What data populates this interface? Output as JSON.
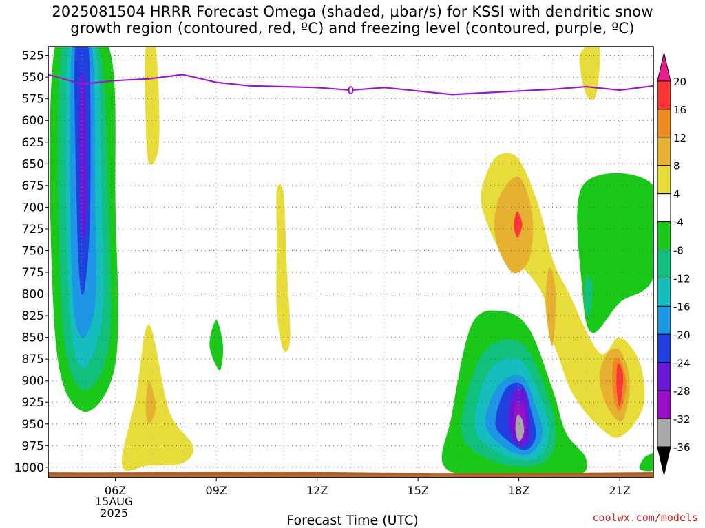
{
  "title": {
    "line1": "2025081504 HRRR Forecast Omega (shaded, μbar/s) for KSSI with dendritic snow",
    "line2": "growth region (contoured, red, ºC) and freezing level (contoured, purple, ºC)"
  },
  "credit": "coolwx.com/models",
  "colors": {
    "freezing_level": "#9a18c8",
    "ground": "#b5652e",
    "grid": "#555555"
  },
  "chart_data": {
    "type": "heatmap",
    "xlabel": "Forecast Time (UTC)",
    "ylabel": "",
    "x_ticks": [
      {
        "hour": 6,
        "label": "06Z",
        "sub1": "15AUG",
        "sub2": "2025"
      },
      {
        "hour": 9,
        "label": "09Z"
      },
      {
        "hour": 12,
        "label": "12Z"
      },
      {
        "hour": 15,
        "label": "15Z"
      },
      {
        "hour": 18,
        "label": "18Z"
      },
      {
        "hour": 21,
        "label": "21Z"
      }
    ],
    "xlim_hours": [
      4.0,
      22.0
    ],
    "y_ticks": [
      525,
      550,
      575,
      600,
      625,
      650,
      675,
      700,
      725,
      750,
      775,
      800,
      825,
      850,
      875,
      900,
      925,
      950,
      975,
      1000
    ],
    "ylim_hpa": [
      515,
      1012
    ],
    "colorbar": {
      "labels": [
        "20",
        "16",
        "12",
        "8",
        "4",
        "-4",
        "-8",
        "-12",
        "-16",
        "-20",
        "-24",
        "-28",
        "-32",
        "-36"
      ],
      "colors": [
        "#ec1a8c",
        "#ff3535",
        "#f08a20",
        "#e6b030",
        "#e8dc3a",
        "#ffffff",
        "#19c819",
        "#12c07e",
        "#14bebe",
        "#1e96e6",
        "#2040e0",
        "#6a18d8",
        "#9a10c8",
        "#a8a8a8",
        "#000000"
      ]
    },
    "freezing_level": {
      "hours": [
        4.0,
        5.0,
        6.0,
        7.0,
        8.0,
        9.0,
        10.0,
        11.0,
        12.0,
        13.0,
        14.0,
        15.0,
        16.0,
        17.0,
        18.0,
        19.0,
        20.0,
        21.0,
        22.0
      ],
      "hpa": [
        547,
        558,
        554,
        552,
        547,
        556,
        560,
        561,
        562,
        565,
        562,
        566,
        570,
        568,
        566,
        564,
        561,
        565,
        560
      ]
    },
    "shaded_regions": [
      {
        "value": -8,
        "color": "#19c819",
        "pts": [
          [
            4.2,
            515
          ],
          [
            5.8,
            515
          ],
          [
            6.0,
            700
          ],
          [
            6.0,
            880
          ],
          [
            5.0,
            935
          ],
          [
            4.2,
            845
          ]
        ]
      },
      {
        "value": -12,
        "color": "#12c07e",
        "pts": [
          [
            4.4,
            515
          ],
          [
            5.5,
            515
          ],
          [
            5.8,
            700
          ],
          [
            5.8,
            860
          ],
          [
            5.0,
            910
          ],
          [
            4.4,
            820
          ]
        ]
      },
      {
        "value": -16,
        "color": "#14bebe",
        "pts": [
          [
            4.6,
            515
          ],
          [
            5.4,
            515
          ],
          [
            5.6,
            700
          ],
          [
            5.6,
            830
          ],
          [
            5.0,
            885
          ],
          [
            4.6,
            800
          ]
        ]
      },
      {
        "value": -20,
        "color": "#1e96e6",
        "pts": [
          [
            4.7,
            515
          ],
          [
            5.3,
            515
          ],
          [
            5.4,
            700
          ],
          [
            5.4,
            810
          ],
          [
            5.0,
            850
          ],
          [
            4.7,
            780
          ]
        ]
      },
      {
        "value": -24,
        "color": "#2040e0",
        "pts": [
          [
            4.8,
            515
          ],
          [
            5.2,
            515
          ],
          [
            5.25,
            700
          ],
          [
            5.1,
            790
          ],
          [
            4.95,
            790
          ],
          [
            4.85,
            700
          ]
        ]
      },
      {
        "value": -28,
        "color": "#6a18d8",
        "pts": [
          [
            4.95,
            560
          ],
          [
            5.1,
            560
          ],
          [
            5.15,
            690
          ],
          [
            5.05,
            740
          ],
          [
            4.95,
            690
          ]
        ]
      },
      {
        "value": 4,
        "color": "#e8dc3a",
        "pts": [
          [
            6.9,
            515
          ],
          [
            7.2,
            515
          ],
          [
            7.3,
            625
          ],
          [
            7.0,
            650
          ],
          [
            6.9,
            600
          ]
        ]
      },
      {
        "value": 4,
        "color": "#e8dc3a",
        "pts": [
          [
            10.8,
            680
          ],
          [
            11.0,
            685
          ],
          [
            11.1,
            770
          ],
          [
            11.2,
            850
          ],
          [
            11.0,
            865
          ],
          [
            10.8,
            820
          ],
          [
            10.8,
            740
          ]
        ]
      },
      {
        "value": 4,
        "color": "#e8dc3a",
        "pts": [
          [
            7.0,
            835
          ],
          [
            7.6,
            935
          ],
          [
            8.3,
            975
          ],
          [
            8.0,
            995
          ],
          [
            7.0,
            998
          ],
          [
            6.2,
            998
          ],
          [
            6.6,
            920
          ]
        ]
      },
      {
        "value": 8,
        "color": "#e6b030",
        "pts": [
          [
            7.0,
            900
          ],
          [
            7.2,
            930
          ],
          [
            7.0,
            950
          ],
          [
            6.9,
            930
          ]
        ]
      },
      {
        "value": -8,
        "color": "#19c819",
        "pts": [
          [
            9.0,
            830
          ],
          [
            9.2,
            860
          ],
          [
            9.1,
            888
          ],
          [
            8.8,
            860
          ]
        ]
      },
      {
        "value": 4,
        "color": "#e8dc3a",
        "pts": [
          [
            20.0,
            515
          ],
          [
            20.4,
            515
          ],
          [
            20.3,
            570
          ],
          [
            20.0,
            570
          ],
          [
            19.8,
            530
          ]
        ]
      },
      {
        "value": 4,
        "color": "#e8dc3a",
        "pts": [
          [
            17.0,
            665
          ],
          [
            17.4,
            640
          ],
          [
            18.0,
            645
          ],
          [
            18.6,
            700
          ],
          [
            19.0,
            760
          ],
          [
            19.5,
            800
          ],
          [
            20.4,
            868
          ],
          [
            21.0,
            850
          ],
          [
            21.6,
            880
          ],
          [
            21.7,
            930
          ],
          [
            21.0,
            965
          ],
          [
            20.3,
            950
          ],
          [
            19.6,
            915
          ],
          [
            19.2,
            875
          ],
          [
            18.9,
            840
          ],
          [
            18.7,
            800
          ],
          [
            18.0,
            765
          ],
          [
            17.5,
            755
          ],
          [
            16.9,
            700
          ]
        ]
      },
      {
        "value": 8,
        "color": "#e6b030",
        "pts": [
          [
            17.4,
            690
          ],
          [
            18.0,
            665
          ],
          [
            18.4,
            710
          ],
          [
            18.3,
            760
          ],
          [
            17.8,
            775
          ],
          [
            17.3,
            735
          ]
        ]
      },
      {
        "value": 16,
        "color": "#ff3535",
        "pts": [
          [
            17.95,
            705
          ],
          [
            18.1,
            720
          ],
          [
            17.95,
            735
          ],
          [
            17.85,
            720
          ]
        ]
      },
      {
        "value": 8,
        "color": "#e6b030",
        "pts": [
          [
            18.9,
            770
          ],
          [
            19.1,
            800
          ],
          [
            19.0,
            860
          ],
          [
            18.8,
            815
          ]
        ]
      },
      {
        "value": 8,
        "color": "#e6b030",
        "pts": [
          [
            20.6,
            870
          ],
          [
            21.0,
            865
          ],
          [
            21.3,
            900
          ],
          [
            21.1,
            945
          ],
          [
            20.7,
            935
          ],
          [
            20.4,
            900
          ]
        ]
      },
      {
        "value": 12,
        "color": "#f08a20",
        "pts": [
          [
            20.8,
            880
          ],
          [
            21.0,
            875
          ],
          [
            21.2,
            905
          ],
          [
            21.0,
            935
          ],
          [
            20.8,
            915
          ]
        ]
      },
      {
        "value": 16,
        "color": "#ff3535",
        "pts": [
          [
            20.95,
            880
          ],
          [
            21.1,
            895
          ],
          [
            21.0,
            930
          ],
          [
            20.9,
            905
          ]
        ]
      },
      {
        "value": -8,
        "color": "#19c819",
        "pts": [
          [
            19.9,
            675
          ],
          [
            22.0,
            675
          ],
          [
            22.0,
            780
          ],
          [
            21.0,
            810
          ],
          [
            20.2,
            845
          ],
          [
            19.9,
            800
          ]
        ]
      },
      {
        "value": -12,
        "color": "#12c07e",
        "pts": [
          [
            20.0,
            780
          ],
          [
            20.2,
            790
          ],
          [
            20.1,
            825
          ],
          [
            19.95,
            810
          ]
        ]
      },
      {
        "value": -8,
        "color": "#19c819",
        "pts": [
          [
            21.9,
            985
          ],
          [
            22.0,
            985
          ],
          [
            22.0,
            1003
          ],
          [
            21.6,
            1002
          ],
          [
            21.7,
            990
          ]
        ]
      },
      {
        "value": -8,
        "color": "#19c819",
        "pts": [
          [
            16.6,
            835
          ],
          [
            17.5,
            820
          ],
          [
            18.3,
            840
          ],
          [
            19.0,
            910
          ],
          [
            19.4,
            960
          ],
          [
            20.0,
            990
          ],
          [
            19.7,
            1009
          ],
          [
            17.5,
            1011
          ],
          [
            15.8,
            1000
          ],
          [
            16.0,
            940
          ]
        ]
      },
      {
        "value": -12,
        "color": "#12c07e",
        "pts": [
          [
            16.9,
            870
          ],
          [
            18.0,
            855
          ],
          [
            18.7,
            900
          ],
          [
            19.1,
            960
          ],
          [
            18.7,
            995
          ],
          [
            17.4,
            995
          ],
          [
            16.3,
            960
          ]
        ]
      },
      {
        "value": -16,
        "color": "#14bebe",
        "pts": [
          [
            17.1,
            890
          ],
          [
            18.0,
            875
          ],
          [
            18.6,
            915
          ],
          [
            18.9,
            960
          ],
          [
            18.5,
            990
          ],
          [
            17.5,
            985
          ],
          [
            16.7,
            955
          ]
        ]
      },
      {
        "value": -20,
        "color": "#1e96e6",
        "pts": [
          [
            17.4,
            905
          ],
          [
            18.1,
            895
          ],
          [
            18.5,
            930
          ],
          [
            18.7,
            962
          ],
          [
            18.3,
            985
          ],
          [
            17.6,
            978
          ],
          [
            17.0,
            950
          ]
        ]
      },
      {
        "value": -24,
        "color": "#2040e0",
        "pts": [
          [
            17.6,
            910
          ],
          [
            18.1,
            905
          ],
          [
            18.4,
            940
          ],
          [
            18.5,
            965
          ],
          [
            18.2,
            980
          ],
          [
            17.7,
            970
          ],
          [
            17.3,
            950
          ]
        ]
      },
      {
        "value": -28,
        "color": "#6a18d8",
        "pts": [
          [
            17.8,
            915
          ],
          [
            18.2,
            912
          ],
          [
            18.3,
            945
          ],
          [
            18.3,
            968
          ],
          [
            18.0,
            975
          ],
          [
            17.7,
            955
          ]
        ]
      },
      {
        "value": -32,
        "color": "#9a10c8",
        "pts": [
          [
            17.9,
            925
          ],
          [
            18.15,
            930
          ],
          [
            18.2,
            955
          ],
          [
            18.05,
            970
          ],
          [
            17.85,
            955
          ]
        ]
      },
      {
        "value": -36,
        "color": "#a8a8a8",
        "pts": [
          [
            17.95,
            940
          ],
          [
            18.1,
            945
          ],
          [
            18.15,
            960
          ],
          [
            18.0,
            970
          ],
          [
            17.9,
            958
          ]
        ]
      }
    ]
  }
}
